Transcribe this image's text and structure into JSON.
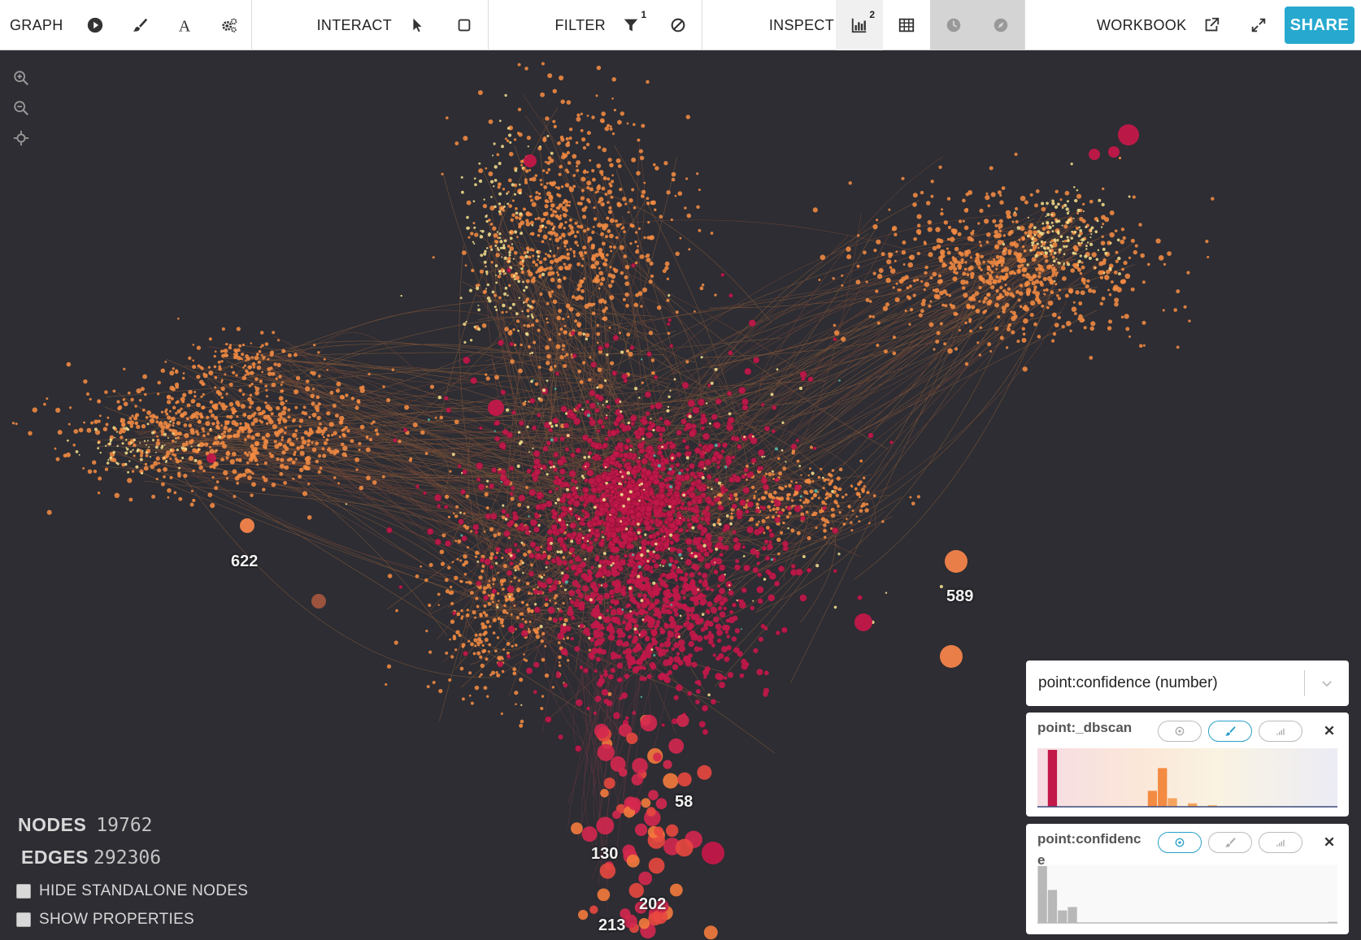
{
  "toolbar": {
    "graph_label": "GRAPH",
    "interact_label": "INTERACT",
    "filter_label": "FILTER",
    "filter_count": "1",
    "inspect_label": "INSPECT",
    "inspect_count": "2",
    "workbook_label": "WORKBOOK",
    "share_label": "SHARE",
    "icons": {
      "graph": [
        "play-icon",
        "paintbrush-icon",
        "font-icon",
        "gears-icon"
      ],
      "interact": [
        "pointer-icon",
        "box-select-icon"
      ],
      "filter": [
        "filter-icon",
        "exclude-icon"
      ],
      "inspect": [
        "histogram-icon",
        "table-icon",
        "timebar-icon",
        "compass-icon"
      ],
      "workbook": [
        "external-link-icon",
        "fullscreen-icon"
      ]
    }
  },
  "canvas": {
    "background": "#2d2d33",
    "zoom_controls": [
      "zoom-in-icon",
      "zoom-out-icon",
      "center-icon"
    ],
    "cluster_labels": [
      "622",
      "589",
      "58",
      "130",
      "202",
      "213"
    ],
    "colors": {
      "core": "#c2184a",
      "cluster": "#f48b42",
      "light": "#f2dc8a",
      "teal": "#4fb8a8"
    }
  },
  "stats": {
    "nodes_label": "NODES",
    "nodes_value": "19762",
    "edges_label": "EDGES",
    "edges_value": "292306"
  },
  "options": {
    "hide_standalone": "HIDE STANDALONE NODES",
    "show_properties": "SHOW PROPERTIES"
  },
  "histograms": {
    "attribute_select": "point:confidence (number)",
    "panels": [
      {
        "title": "point:_dbscan",
        "active_mode": "color",
        "bars": [
          0,
          1.0,
          0,
          0,
          0,
          0,
          0,
          0,
          0,
          0,
          0,
          0.28,
          0.68,
          0.15,
          0,
          0.06,
          0,
          0.03,
          0,
          0,
          0,
          0,
          0,
          0,
          0,
          0,
          0,
          0,
          0,
          0
        ],
        "bar_colors": [
          "#c2184a",
          "#f48b42",
          "#f5a35c",
          "#f6b977",
          "#f2dc8a"
        ]
      },
      {
        "title": "point:confidenc\ne",
        "active_mode": "point",
        "bars": [
          1.0,
          0.58,
          0.22,
          0.28,
          0,
          0,
          0,
          0,
          0,
          0,
          0,
          0,
          0,
          0,
          0,
          0,
          0,
          0,
          0,
          0,
          0,
          0,
          0,
          0,
          0,
          0,
          0,
          0,
          0,
          0.02
        ],
        "bar_colors": [
          "#b8b8b8"
        ]
      }
    ]
  }
}
